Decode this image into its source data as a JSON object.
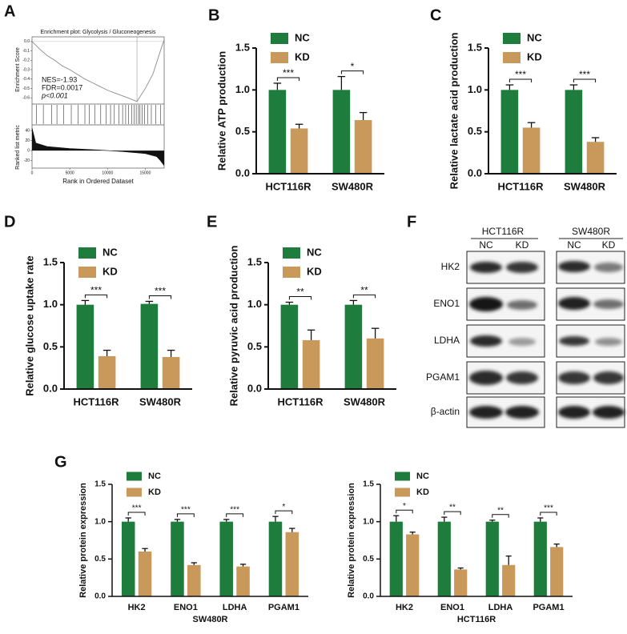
{
  "chart_data": [
    {
      "type": "line",
      "panel": "A",
      "title": "Enrichment plot: Glycolysis / Gluconeogenesis",
      "ylabel": "Enrichment Score",
      "metric_label": "Ranked list metric",
      "xlabel": "Rank in Ordered Dataset",
      "annotations": [
        "NES=-1.93",
        "FDR=0.0017",
        "p<0.001"
      ],
      "x": [
        0,
        1000,
        2000,
        3000,
        4000,
        5000,
        6000,
        7000,
        8000,
        9000,
        10000,
        11000,
        12000,
        13000,
        13900,
        15000,
        16000,
        17000,
        17500
      ],
      "values": [
        0,
        -0.08,
        -0.15,
        -0.2,
        -0.26,
        -0.3,
        -0.35,
        -0.4,
        -0.44,
        -0.48,
        -0.52,
        -0.55,
        -0.58,
        -0.61,
        -0.64,
        -0.5,
        -0.35,
        -0.1,
        0.02
      ],
      "color": "#8c8c8c",
      "ylim": [
        -0.65,
        0.05
      ],
      "yticks": [
        {
          "value": 0,
          "label": "0.0"
        },
        -0.1,
        -0.2,
        -0.3,
        -0.4,
        -0.5,
        -0.6
      ],
      "xlim": [
        0,
        17500
      ],
      "xticks": [
        0,
        5000,
        10000,
        15000
      ],
      "hits": [
        600,
        1500,
        2600,
        3300,
        4200,
        5200,
        6100,
        7000,
        7600,
        8300,
        9100,
        9800,
        10400,
        10900,
        11500,
        12000,
        12400,
        12800,
        13200,
        13500,
        13800,
        14100,
        14300,
        14600,
        14900,
        15300,
        15800,
        16400,
        17000
      ],
      "peak": 13900,
      "metric_x": [
        0,
        500,
        2000,
        5000,
        9000,
        12000,
        15000,
        16500,
        17000,
        17500
      ],
      "metric_values": [
        45,
        15,
        8,
        4,
        1,
        -2,
        -6,
        -12,
        -20,
        -30
      ],
      "metric_ylim": [
        -35,
        48
      ],
      "metric_yticks": [
        40,
        20,
        0,
        -20
      ]
    },
    {
      "type": "bar",
      "panel": "B",
      "ylabel": "Relative ATP production",
      "categories": [
        "HCT116R",
        "SW480R"
      ],
      "series": [
        {
          "name": "NC",
          "color": "#1e7d3c",
          "values": [
            1.0,
            1.0
          ],
          "errors": [
            0.08,
            0.16
          ]
        },
        {
          "name": "KD",
          "color": "#c9985b",
          "values": [
            0.54,
            0.64
          ],
          "errors": [
            0.05,
            0.09
          ]
        }
      ],
      "significance": [
        "***",
        "*"
      ],
      "ylim": [
        0,
        1.5
      ],
      "yticks": [
        {
          "value": 0,
          "label": "0.0"
        },
        0.5,
        {
          "value": 1,
          "label": "1.0"
        },
        1.5
      ]
    },
    {
      "type": "bar",
      "panel": "C",
      "ylabel": "Relative lactate acid production",
      "categories": [
        "HCT116R",
        "SW480R"
      ],
      "series": [
        {
          "name": "NC",
          "color": "#1e7d3c",
          "values": [
            1.0,
            1.0
          ],
          "errors": [
            0.06,
            0.06
          ]
        },
        {
          "name": "KD",
          "color": "#c9985b",
          "values": [
            0.55,
            0.38
          ],
          "errors": [
            0.06,
            0.05
          ]
        }
      ],
      "significance": [
        "***",
        "***"
      ],
      "ylim": [
        0,
        1.5
      ],
      "yticks": [
        {
          "value": 0,
          "label": "0.0"
        },
        0.5,
        {
          "value": 1,
          "label": "1.0"
        },
        1.5
      ]
    },
    {
      "type": "bar",
      "panel": "D",
      "ylabel": "Relative glucose uptake rate",
      "categories": [
        "HCT116R",
        "SW480R"
      ],
      "series": [
        {
          "name": "NC",
          "color": "#1e7d3c",
          "values": [
            1.0,
            1.01
          ],
          "errors": [
            0.05,
            0.03
          ]
        },
        {
          "name": "KD",
          "color": "#c9985b",
          "values": [
            0.39,
            0.38
          ],
          "errors": [
            0.07,
            0.08
          ]
        }
      ],
      "significance": [
        "***",
        "***"
      ],
      "ylim": [
        0,
        1.5
      ],
      "yticks": [
        {
          "value": 0,
          "label": "0.0"
        },
        0.5,
        {
          "value": 1,
          "label": "1.0"
        },
        1.5
      ]
    },
    {
      "type": "bar",
      "panel": "E",
      "ylabel": "Relative pyruvic acid production",
      "categories": [
        "HCT116R",
        "SW480R"
      ],
      "series": [
        {
          "name": "NC",
          "color": "#1e7d3c",
          "values": [
            1.0,
            1.0
          ],
          "errors": [
            0.03,
            0.05
          ]
        },
        {
          "name": "KD",
          "color": "#c9985b",
          "values": [
            0.58,
            0.6
          ],
          "errors": [
            0.12,
            0.12
          ]
        }
      ],
      "significance": [
        "**",
        "**"
      ],
      "ylim": [
        0,
        1.5
      ],
      "yticks": [
        {
          "value": 0,
          "label": "0.0"
        },
        0.5,
        {
          "value": 1,
          "label": "1.0"
        },
        1.5
      ]
    },
    {
      "type": "bar",
      "panel": "G",
      "ylabel": "Relative protein expression",
      "xlabel": "SW480R",
      "categories": [
        "HK2",
        "ENO1",
        "LDHA",
        "PGAM1"
      ],
      "series": [
        {
          "name": "NC",
          "color": "#1e7d3c",
          "values": [
            1.0,
            1.0,
            1.0,
            1.0
          ],
          "errors": [
            0.05,
            0.03,
            0.03,
            0.07
          ]
        },
        {
          "name": "KD",
          "color": "#c9985b",
          "values": [
            0.6,
            0.42,
            0.4,
            0.86
          ],
          "errors": [
            0.04,
            0.03,
            0.03,
            0.05
          ]
        }
      ],
      "significance": [
        "***",
        "***",
        "***",
        "*"
      ],
      "ylim": [
        0,
        1.5
      ],
      "yticks": [
        {
          "value": 0,
          "label": "0.0"
        },
        0.5,
        {
          "value": 1,
          "label": "1.0"
        },
        1.5
      ]
    },
    {
      "type": "bar",
      "ylabel": "Relative protein expression",
      "xlabel": "HCT116R",
      "categories": [
        "HK2",
        "ENO1",
        "LDHA",
        "PGAM1"
      ],
      "series": [
        {
          "name": "NC",
          "color": "#1e7d3c",
          "values": [
            1.0,
            1.0,
            1.0,
            1.0
          ],
          "errors": [
            0.08,
            0.06,
            0.02,
            0.05
          ]
        },
        {
          "name": "KD",
          "color": "#c9985b",
          "values": [
            0.83,
            0.36,
            0.42,
            0.66
          ],
          "errors": [
            0.03,
            0.02,
            0.12,
            0.04
          ]
        }
      ],
      "significance": [
        "*",
        "**",
        "**",
        "***"
      ],
      "ylim": [
        0,
        1.5
      ],
      "yticks": [
        {
          "value": 0,
          "label": "0.0"
        },
        0.5,
        {
          "value": 1,
          "label": "1.0"
        },
        1.5
      ]
    }
  ],
  "blot": {
    "panel": "F",
    "groups": [
      "HCT116R",
      "SW480R"
    ],
    "lanes": [
      "NC",
      "KD",
      "NC",
      "KD"
    ],
    "proteins": [
      "HK2",
      "ENO1",
      "LDHA",
      "PGAM1",
      "β-actin"
    ]
  }
}
